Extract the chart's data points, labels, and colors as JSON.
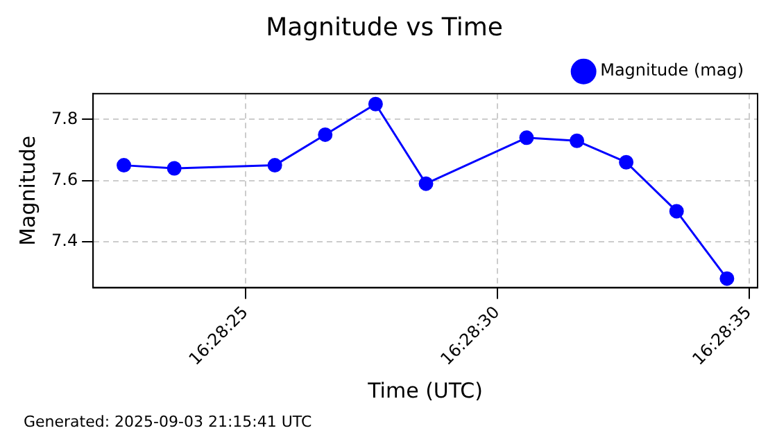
{
  "chart_data": {
    "type": "line",
    "title": "Magnitude vs Time",
    "xlabel": "Time (UTC)",
    "ylabel": "Magnitude",
    "x": [
      16.472939,
      16.473217,
      16.473772,
      16.47405,
      16.474328,
      16.474606,
      16.475161,
      16.475439,
      16.475711,
      16.475989,
      16.476267
    ],
    "series": [
      {
        "name": "Magnitude (mag)",
        "color": "#0000ff",
        "values": [
          7.65,
          7.64,
          7.65,
          7.75,
          7.85,
          7.59,
          7.74,
          7.73,
          7.66,
          7.5,
          7.28
        ]
      }
    ],
    "xlim": [
      16.472769,
      16.476436
    ],
    "xticks": [
      {
        "value": 16.473611,
        "label": "16:28:25"
      },
      {
        "value": 16.475,
        "label": "16:28:30"
      },
      {
        "value": 16.476389,
        "label": "16:28:35"
      }
    ],
    "ylim": [
      7.25,
      7.884
    ],
    "yticks": [
      7.4,
      7.6,
      7.8
    ],
    "grid": true,
    "legend": "top right",
    "marker": "circle",
    "line_style": "solid",
    "annotations": [
      "Generated: 2025-09-03 21:15:41 UTC"
    ]
  }
}
